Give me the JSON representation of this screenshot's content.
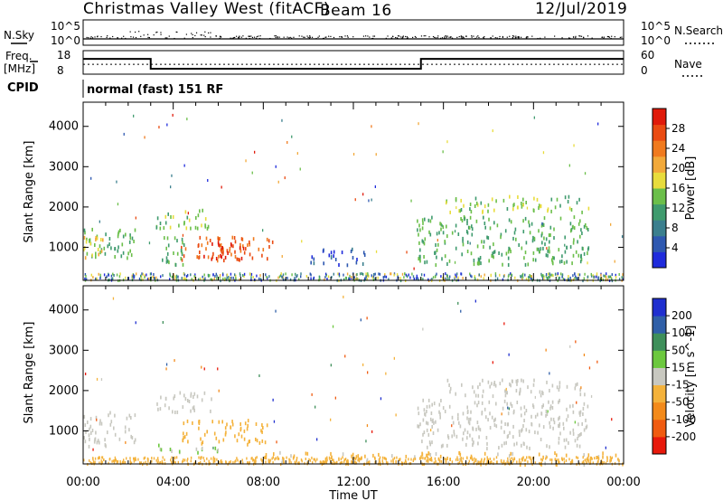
{
  "header": {
    "station": "Christmas Valley West (fitACF)",
    "beam": "Beam 16",
    "date": "12/Jul/2019"
  },
  "nsky_panel": {
    "left_label": "N.Sky",
    "right_label": "N.Search",
    "left_ticks": [
      "10^5",
      "10^0"
    ],
    "right_ticks": [
      "10^5",
      "10^0"
    ]
  },
  "freq_panel": {
    "left_label": "Freq.",
    "left_unit": "[MHz]",
    "right_label": "Nave",
    "left_ticks": [
      "18",
      "8"
    ],
    "right_ticks": [
      "60",
      "0"
    ],
    "freq_steps": [
      {
        "t0": 0.0,
        "t1": 3.0,
        "mhz": 14.5
      },
      {
        "t0": 3.0,
        "t1": 15.0,
        "mhz": 10.3
      },
      {
        "t0": 15.0,
        "t1": 24.0,
        "mhz": 14.5
      }
    ],
    "nave_level": 25
  },
  "cpid": {
    "label": "CPID",
    "mode": "normal (fast) 151 RF"
  },
  "colors": {
    "power": [
      "#1f2bdc",
      "#2e58b0",
      "#3b7f8e",
      "#3f9b6e",
      "#6bbf4a",
      "#e8dc3c",
      "#f2a93a",
      "#f07a1e",
      "#ea4b12",
      "#e01a0a"
    ],
    "velocity": [
      "#e8190b",
      "#f05b10",
      "#f38a1a",
      "#f4b23b",
      "#c8c8c0",
      "#6cc83e",
      "#3e8f5a",
      "#2f5fa8",
      "#1f2fcf"
    ]
  },
  "chart_data": [
    {
      "type": "heatmap",
      "panel": "power",
      "xlabel": "Time UT",
      "ylabel": "Slant Range [km]",
      "colorbar_label": "Power [dB]",
      "xlim": [
        0,
        24
      ],
      "ylim": [
        180,
        4600
      ],
      "x_ticks": [
        "00:00",
        "04:00",
        "08:00",
        "12:00",
        "16:00",
        "20:00",
        "00:00"
      ],
      "y_ticks": [
        1000,
        2000,
        3000,
        4000
      ],
      "colorbar_ticks": [
        "4",
        "8",
        "12",
        "16",
        "20",
        "24",
        "28"
      ],
      "clim": [
        0,
        30
      ],
      "regions": [
        {
          "t0": 0.0,
          "t1": 2.3,
          "r0": 650,
          "r1": 1500,
          "value": 12
        },
        {
          "t0": 0.0,
          "t1": 1.0,
          "r0": 700,
          "r1": 1300,
          "value": 18
        },
        {
          "t0": 3.2,
          "t1": 5.8,
          "r0": 1500,
          "r1": 2000,
          "value": 14
        },
        {
          "t0": 4.3,
          "t1": 8.4,
          "r0": 700,
          "r1": 1300,
          "value": 24
        },
        {
          "t0": 5.2,
          "t1": 7.3,
          "r0": 750,
          "r1": 1200,
          "value": 28
        },
        {
          "t0": 3.2,
          "t1": 4.5,
          "r0": 550,
          "r1": 1300,
          "value": 12
        },
        {
          "t0": 14.8,
          "t1": 22.5,
          "r0": 600,
          "r1": 1800,
          "value": 12
        },
        {
          "t0": 16.0,
          "t1": 22.5,
          "r0": 1900,
          "r1": 2300,
          "value": 14
        },
        {
          "t0": 10.0,
          "t1": 12.5,
          "r0": 600,
          "r1": 1000,
          "value": 4
        }
      ]
    },
    {
      "type": "heatmap",
      "panel": "velocity",
      "xlabel": "Time UT",
      "ylabel": "Slant Range [km]",
      "colorbar_label": "Velocity [m s^-1]",
      "xlim": [
        0,
        24
      ],
      "ylim": [
        180,
        4600
      ],
      "x_ticks": [
        "00:00",
        "04:00",
        "08:00",
        "12:00",
        "16:00",
        "20:00",
        "00:00"
      ],
      "y_ticks": [
        1000,
        2000,
        3000,
        4000
      ],
      "colorbar_ticks": [
        "-200",
        "-100",
        "-50",
        "-15",
        "15",
        "50",
        "100",
        "200"
      ],
      "clim": [
        -250,
        250
      ],
      "regions": [
        {
          "t0": 0.0,
          "t1": 2.3,
          "r0": 650,
          "r1": 1500,
          "value": 0
        },
        {
          "t0": 3.2,
          "t1": 5.8,
          "r0": 1500,
          "r1": 2000,
          "value": 0
        },
        {
          "t0": 4.3,
          "t1": 8.4,
          "r0": 700,
          "r1": 1300,
          "value": -60
        },
        {
          "t0": 3.2,
          "t1": 6.0,
          "r0": 500,
          "r1": 700,
          "value": 30
        },
        {
          "t0": 14.8,
          "t1": 22.5,
          "r0": 600,
          "r1": 1800,
          "value": 0
        },
        {
          "t0": 16.0,
          "t1": 22.5,
          "r0": 1900,
          "r1": 2300,
          "value": 0
        },
        {
          "t0": 8.0,
          "t1": 24.0,
          "r0": 200,
          "r1": 500,
          "value": -40
        }
      ]
    }
  ]
}
